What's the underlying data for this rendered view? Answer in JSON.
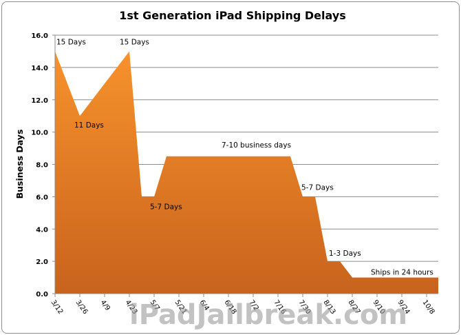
{
  "chart_data": {
    "type": "area",
    "title": "1st Generation iPad Shipping Delays",
    "xlabel": "",
    "ylabel": "Business Days",
    "ylim": [
      0,
      16
    ],
    "yticks": [
      "0.0",
      "2.0",
      "4.0",
      "6.0",
      "8.0",
      "10.0",
      "12.0",
      "14.0",
      "16.0"
    ],
    "xticks": [
      "3/12",
      "3/26",
      "4/9",
      "4/23",
      "5/7",
      "5/21",
      "6/4",
      "6/18",
      "7/2",
      "7/16",
      "7/30",
      "8/13",
      "8/27",
      "9/10",
      "9/24",
      "10/8"
    ],
    "grid": true,
    "fill_colors": [
      "#f7922c",
      "#c8631d"
    ],
    "points": [
      {
        "x": "3/12",
        "y": 15
      },
      {
        "x": "3/26",
        "y": 11
      },
      {
        "x": "4/23",
        "y": 15
      },
      {
        "x": "4/30",
        "y": 6
      },
      {
        "x": "5/7",
        "y": 6
      },
      {
        "x": "5/14",
        "y": 8.5
      },
      {
        "x": "7/23",
        "y": 8.5
      },
      {
        "x": "7/30",
        "y": 6
      },
      {
        "x": "8/6",
        "y": 6
      },
      {
        "x": "8/13",
        "y": 2
      },
      {
        "x": "8/20",
        "y": 2
      },
      {
        "x": "8/27",
        "y": 1
      },
      {
        "x": "10/15",
        "y": 1
      }
    ],
    "annotations": [
      {
        "text": "15 Days",
        "x": "3/12",
        "y": 15
      },
      {
        "text": "11 Days",
        "x": "3/26",
        "y": 11
      },
      {
        "text": "15 Days",
        "x": "4/23",
        "y": 15
      },
      {
        "text": "5-7 Days",
        "x": "5/7",
        "y": 6
      },
      {
        "text": "7-10 business days",
        "x": "6/25",
        "y": 8.5
      },
      {
        "text": "5-7 Days",
        "x": "7/30",
        "y": 6
      },
      {
        "text": "1-3 Days",
        "x": "8/13",
        "y": 2
      },
      {
        "text": "Ships in  24  hours",
        "x": "9/24",
        "y": 1
      }
    ]
  },
  "watermark": "iPadJailbreak.com"
}
